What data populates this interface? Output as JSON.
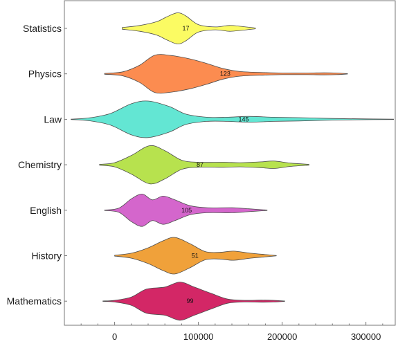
{
  "chart_data": {
    "type": "violin",
    "title": "",
    "xlabel": "",
    "ylabel": "",
    "xlim": [
      -60000,
      335000
    ],
    "x_ticks": [
      0,
      100000,
      200000,
      300000
    ],
    "x_tick_labels": [
      "0",
      "100000",
      "200000",
      "300000"
    ],
    "grid": false,
    "series": [
      {
        "category": "Statistics",
        "label": "17",
        "color": "#fbfb63",
        "label_x": 85000,
        "profile": [
          [
            9000,
            0.04
          ],
          [
            30000,
            0.14
          ],
          [
            50000,
            0.32
          ],
          [
            62000,
            0.55
          ],
          [
            75000,
            0.75
          ],
          [
            85000,
            0.6
          ],
          [
            100000,
            0.18
          ],
          [
            120000,
            0.07
          ],
          [
            137000,
            0.14
          ],
          [
            150000,
            0.1
          ],
          [
            168000,
            0.02
          ]
        ]
      },
      {
        "category": "Physics",
        "label": "123",
        "color": "#fc8c50",
        "label_x": 132000,
        "profile": [
          [
            -12000,
            0.02
          ],
          [
            10000,
            0.1
          ],
          [
            30000,
            0.42
          ],
          [
            48000,
            0.9
          ],
          [
            68000,
            0.88
          ],
          [
            90000,
            0.72
          ],
          [
            110000,
            0.5
          ],
          [
            130000,
            0.25
          ],
          [
            150000,
            0.11
          ],
          [
            180000,
            0.06
          ],
          [
            200000,
            0.04
          ],
          [
            230000,
            0.04
          ],
          [
            250000,
            0.05
          ],
          [
            265000,
            0.04
          ],
          [
            278000,
            0.01
          ]
        ]
      },
      {
        "category": "Law",
        "label": "145",
        "color": "#63e6d3",
        "label_x": 154000,
        "profile": [
          [
            -52000,
            0.01
          ],
          [
            -30000,
            0.07
          ],
          [
            -5000,
            0.28
          ],
          [
            20000,
            0.75
          ],
          [
            40000,
            0.88
          ],
          [
            65000,
            0.62
          ],
          [
            85000,
            0.25
          ],
          [
            110000,
            0.1
          ],
          [
            135000,
            0.1
          ],
          [
            160000,
            0.14
          ],
          [
            190000,
            0.1
          ],
          [
            220000,
            0.08
          ],
          [
            260000,
            0.04
          ],
          [
            300000,
            0.02
          ],
          [
            333000,
            0.01
          ]
        ]
      },
      {
        "category": "Chemistry",
        "label": "87",
        "color": "#b7e24e",
        "label_x": 102000,
        "profile": [
          [
            -18000,
            0.02
          ],
          [
            0,
            0.1
          ],
          [
            20000,
            0.45
          ],
          [
            42000,
            0.92
          ],
          [
            60000,
            0.68
          ],
          [
            80000,
            0.22
          ],
          [
            100000,
            0.12
          ],
          [
            130000,
            0.12
          ],
          [
            150000,
            0.1
          ],
          [
            175000,
            0.14
          ],
          [
            190000,
            0.18
          ],
          [
            210000,
            0.08
          ],
          [
            232000,
            0.02
          ]
        ]
      },
      {
        "category": "English",
        "label": "105",
        "color": "#d466cc",
        "label_x": 86000,
        "profile": [
          [
            -12000,
            0.01
          ],
          [
            5000,
            0.1
          ],
          [
            20000,
            0.55
          ],
          [
            33000,
            0.78
          ],
          [
            45000,
            0.5
          ],
          [
            58000,
            0.68
          ],
          [
            72000,
            0.5
          ],
          [
            90000,
            0.22
          ],
          [
            110000,
            0.12
          ],
          [
            140000,
            0.12
          ],
          [
            160000,
            0.07
          ],
          [
            182000,
            0.01
          ]
        ]
      },
      {
        "category": "History",
        "label": "51",
        "color": "#f0a13a",
        "label_x": 96000,
        "profile": [
          [
            0,
            0.02
          ],
          [
            20000,
            0.12
          ],
          [
            40000,
            0.38
          ],
          [
            58000,
            0.72
          ],
          [
            72000,
            0.88
          ],
          [
            90000,
            0.58
          ],
          [
            108000,
            0.2
          ],
          [
            125000,
            0.16
          ],
          [
            142000,
            0.22
          ],
          [
            162000,
            0.12
          ],
          [
            182000,
            0.05
          ],
          [
            193000,
            0.01
          ]
        ]
      },
      {
        "category": "Mathematics",
        "label": "99",
        "color": "#d32766",
        "label_x": 90000,
        "profile": [
          [
            -14000,
            0.01
          ],
          [
            0,
            0.04
          ],
          [
            20000,
            0.2
          ],
          [
            38000,
            0.58
          ],
          [
            60000,
            0.68
          ],
          [
            78000,
            0.92
          ],
          [
            95000,
            0.68
          ],
          [
            115000,
            0.38
          ],
          [
            135000,
            0.1
          ],
          [
            155000,
            0.04
          ],
          [
            175000,
            0.05
          ],
          [
            190000,
            0.04
          ],
          [
            203000,
            0.01
          ]
        ]
      }
    ]
  }
}
